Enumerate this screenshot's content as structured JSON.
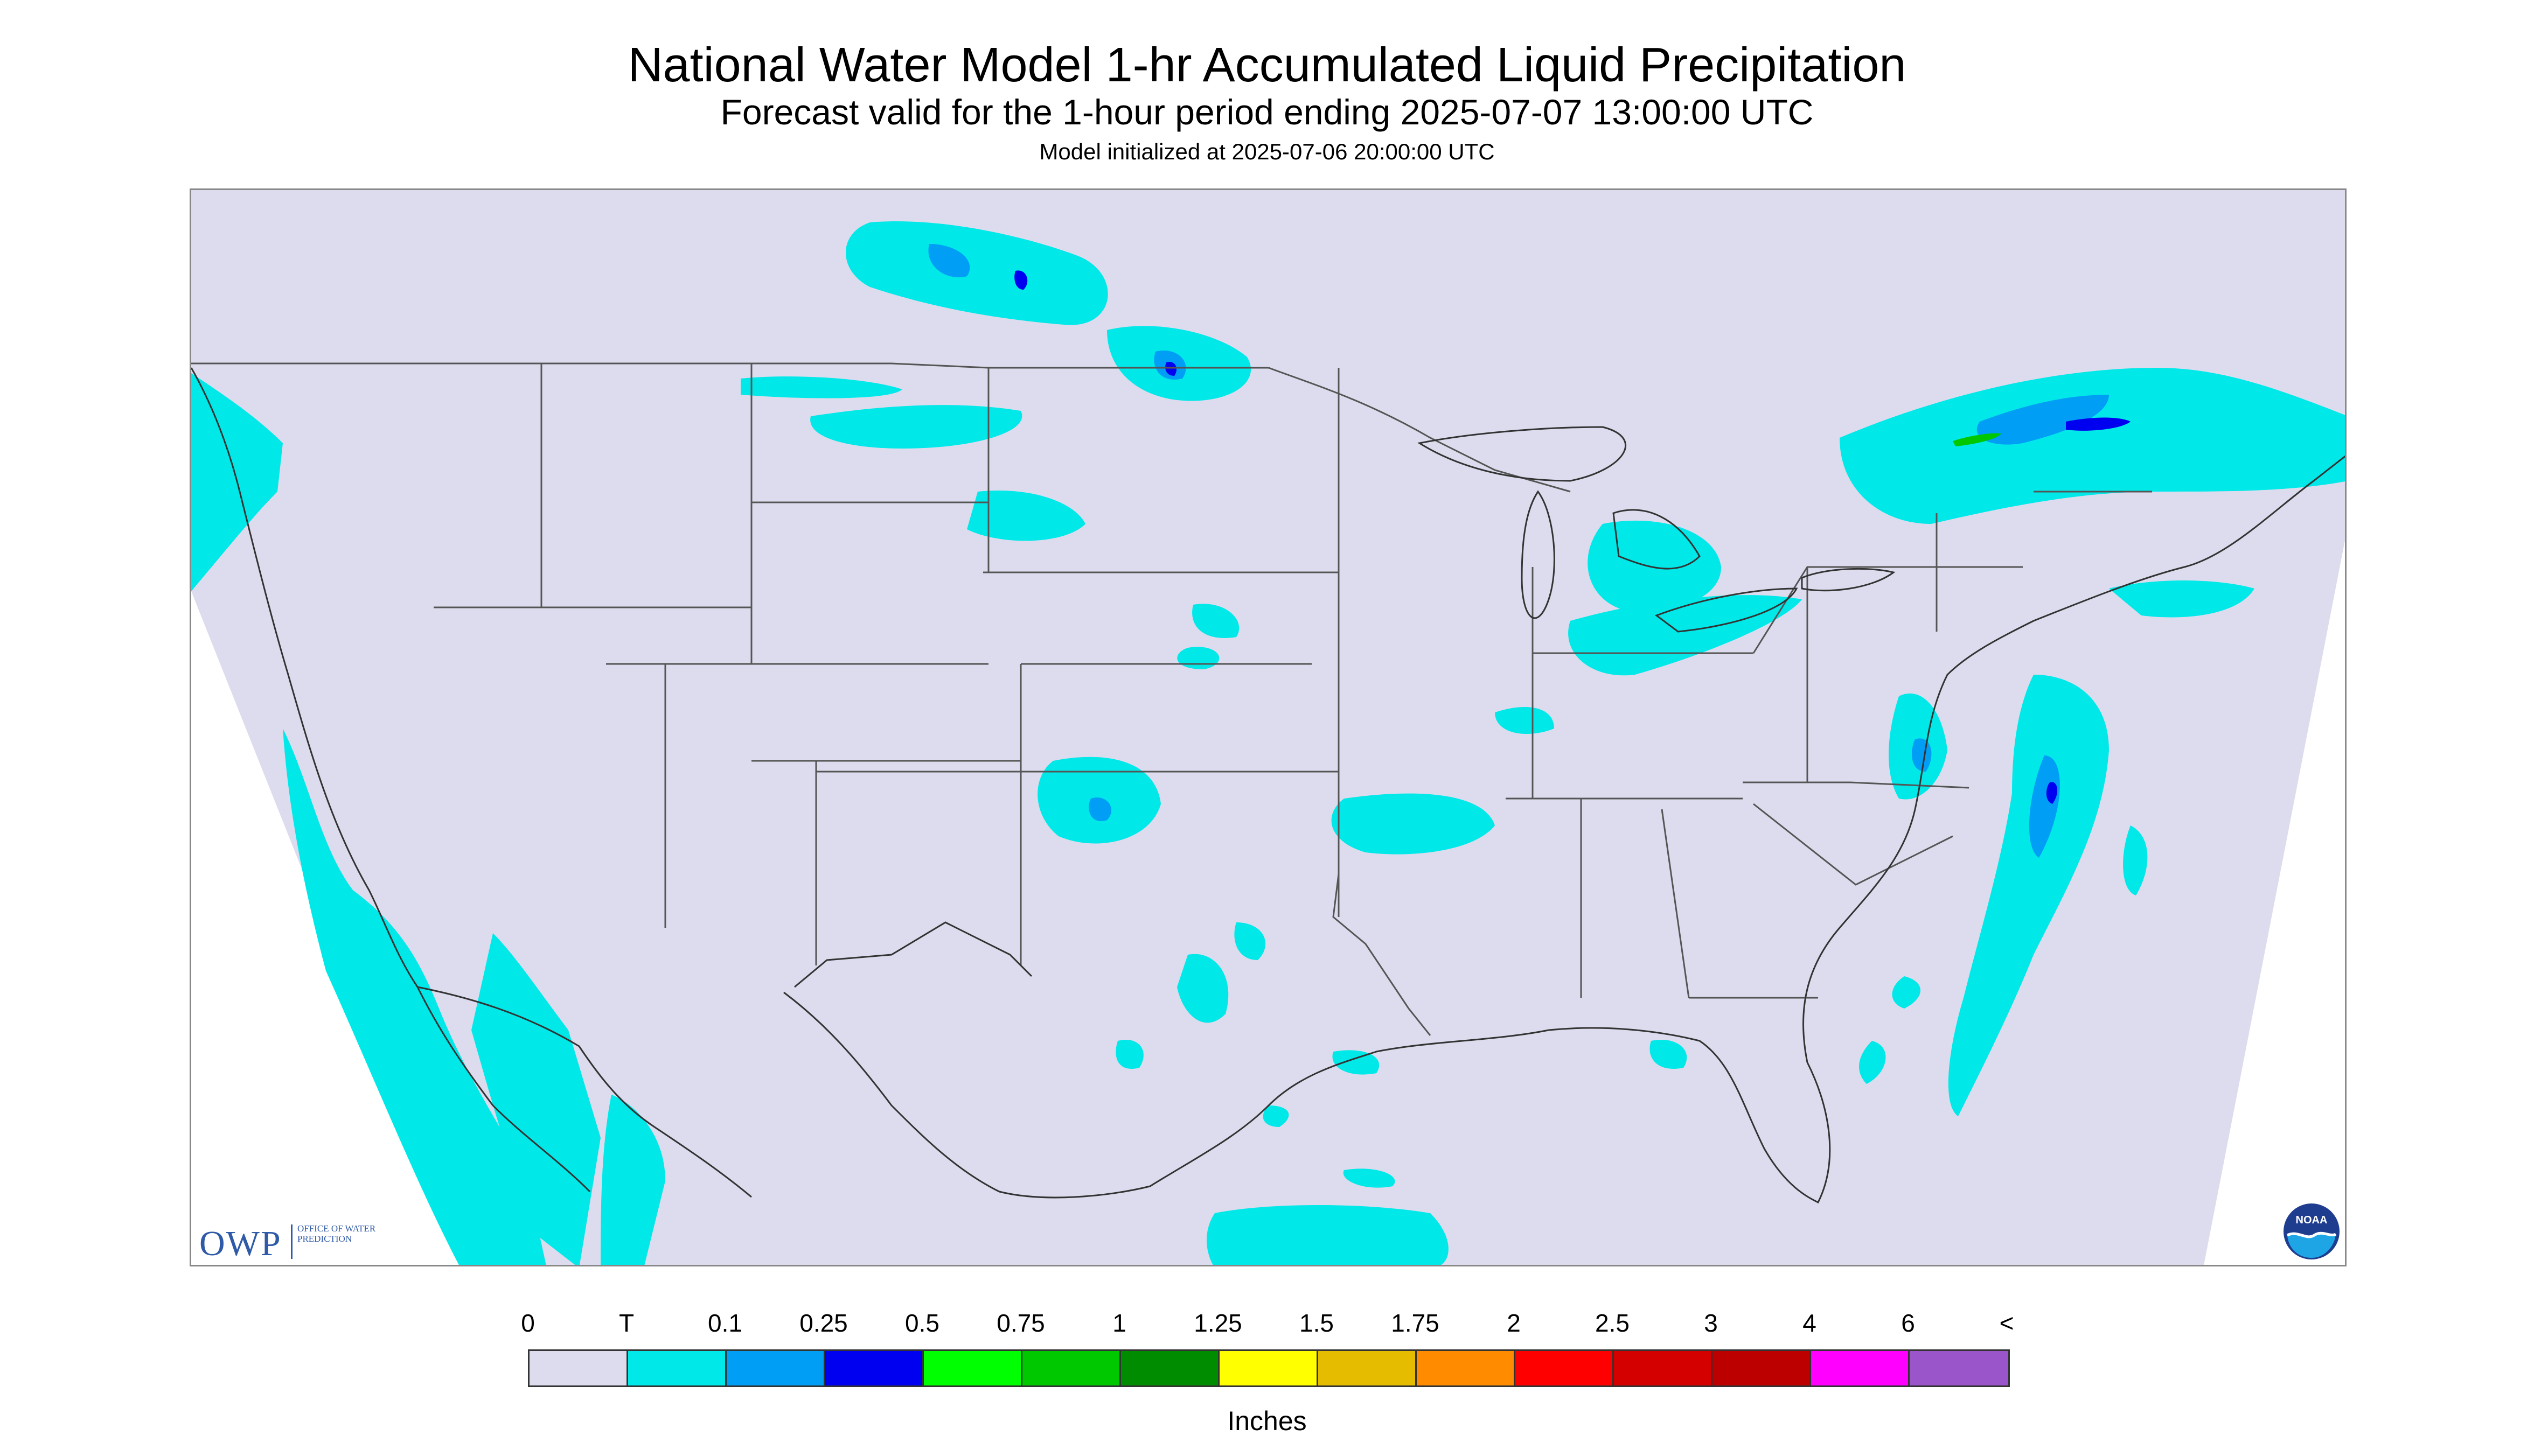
{
  "header": {
    "title": "National Water Model 1-hr Accumulated Liquid Precipitation",
    "subtitle": "Forecast valid for the 1-hour period ending 2025-07-07 13:00:00 UTC",
    "init_line": "Model initialized at 2025-07-06 20:00:00 UTC"
  },
  "logos": {
    "owp_big": "OWP",
    "owp_small": "OFFICE OF WATER PREDICTION",
    "noaa": "NOAA"
  },
  "legend": {
    "ticks": [
      "0",
      "T",
      "0.1",
      "0.25",
      "0.5",
      "0.75",
      "1",
      "1.25",
      "1.5",
      "1.75",
      "2",
      "2.5",
      "3",
      "4",
      "6",
      "<"
    ],
    "colors": [
      "#dcdcee",
      "#00e8e8",
      "#009ef5",
      "#0000f0",
      "#00ff00",
      "#00c800",
      "#008c00",
      "#ffff00",
      "#e6bc00",
      "#ff8c00",
      "#ff0000",
      "#d40000",
      "#bc0000",
      "#ff00ff",
      "#9955c9"
    ],
    "units": "Inches"
  },
  "map": {
    "land_color": "#dcdcee",
    "offgrid_color": "#ffffff",
    "light_precip_color": "#00e8e8",
    "moderate_precip_color": "#009ef5",
    "heavy_precip_color": "#0000f0",
    "peak_precip_color": "#00c800",
    "boundary_color": "#555555",
    "precip_areas": [
      {
        "region": "North Dakota / Saskatchewan",
        "category": "0.25"
      },
      {
        "region": "Northern Minnesota",
        "category": "0.25"
      },
      {
        "region": "Southern Quebec",
        "category": "0.75"
      },
      {
        "region": "Michigan",
        "category": "0.1"
      },
      {
        "region": "Ohio / Pennsylvania",
        "category": "0.1"
      },
      {
        "region": "Virginia / North Carolina coast",
        "category": "0.25"
      },
      {
        "region": "Western Atlantic off Carolinas",
        "category": "0.25"
      },
      {
        "region": "Southern Kansas",
        "category": "0.25"
      },
      {
        "region": "Arkansas / Oklahoma",
        "category": "0.1"
      },
      {
        "region": "Eastern Pacific",
        "category": "T"
      },
      {
        "region": "Gulf of Mexico",
        "category": "0.1"
      },
      {
        "region": "Northern Mexico",
        "category": "T"
      },
      {
        "region": "South Texas",
        "category": "T"
      },
      {
        "region": "Nebraska",
        "category": "T"
      },
      {
        "region": "Montana",
        "category": "T"
      }
    ]
  }
}
